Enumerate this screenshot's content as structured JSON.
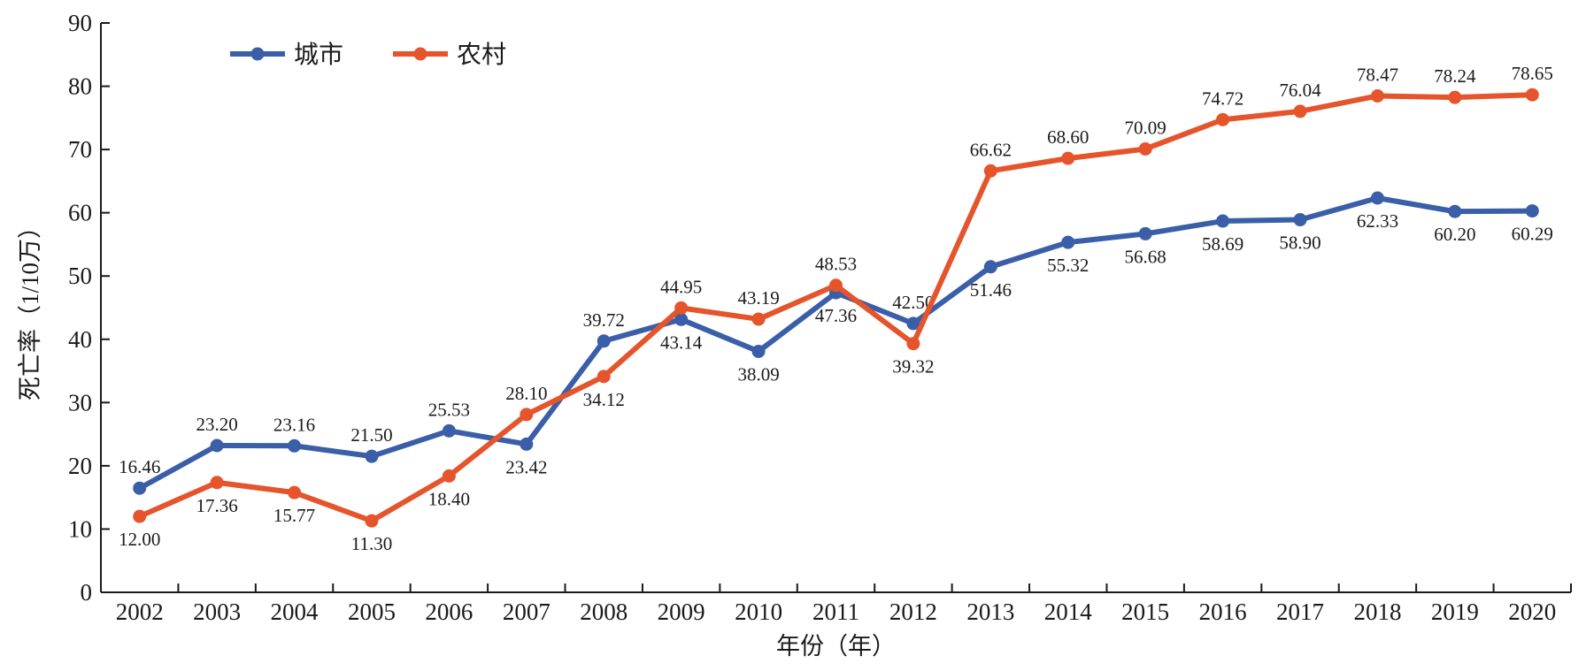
{
  "chart_data": {
    "type": "line",
    "title": "",
    "xlabel": "年份（年）",
    "ylabel": "死亡率（1/10万）",
    "ylim": [
      0,
      90
    ],
    "yticks": [
      0,
      10,
      20,
      30,
      40,
      50,
      60,
      70,
      80,
      90
    ],
    "categories": [
      "2002",
      "2003",
      "2004",
      "2005",
      "2006",
      "2007",
      "2008",
      "2009",
      "2010",
      "2011",
      "2012",
      "2013",
      "2014",
      "2015",
      "2016",
      "2017",
      "2018",
      "2019",
      "2020"
    ],
    "series": [
      {
        "name": "城市",
        "color": "#3a5ea8",
        "values": [
          16.46,
          23.2,
          23.16,
          21.5,
          25.53,
          23.42,
          39.72,
          43.14,
          38.09,
          47.36,
          42.5,
          51.46,
          55.32,
          56.68,
          58.69,
          58.9,
          62.33,
          60.2,
          60.29
        ],
        "labels": [
          "16.46",
          "23.20",
          "23.16",
          "21.50",
          "25.53",
          "23.42",
          "39.72",
          "43.14",
          "38.09",
          "47.36",
          "42.50",
          "51.46",
          "55.32",
          "56.68",
          "58.69",
          "58.90",
          "62.33",
          "60.20",
          "60.29"
        ],
        "label_pos": [
          "above",
          "above",
          "above",
          "above",
          "above",
          "below",
          "above",
          "below",
          "below",
          "below",
          "above",
          "below",
          "below",
          "below",
          "below",
          "below",
          "below",
          "below",
          "below"
        ]
      },
      {
        "name": "农村",
        "color": "#e5542b",
        "values": [
          12.0,
          17.36,
          15.77,
          11.3,
          18.4,
          28.1,
          34.12,
          44.95,
          43.19,
          48.53,
          39.32,
          66.62,
          68.6,
          70.09,
          74.72,
          76.04,
          78.47,
          78.24,
          78.65
        ],
        "labels": [
          "12.00",
          "17.36",
          "15.77",
          "11.30",
          "18.40",
          "28.10",
          "34.12",
          "44.95",
          "43.19",
          "48.53",
          "39.32",
          "66.62",
          "68.60",
          "70.09",
          "74.72",
          "76.04",
          "78.47",
          "78.24",
          "78.65"
        ],
        "label_pos": [
          "below",
          "below",
          "below",
          "below",
          "below",
          "above",
          "below",
          "above",
          "above",
          "above",
          "below",
          "above",
          "above",
          "above",
          "above",
          "above",
          "above",
          "above",
          "above"
        ]
      }
    ],
    "legend": "top-left",
    "grid": false
  }
}
